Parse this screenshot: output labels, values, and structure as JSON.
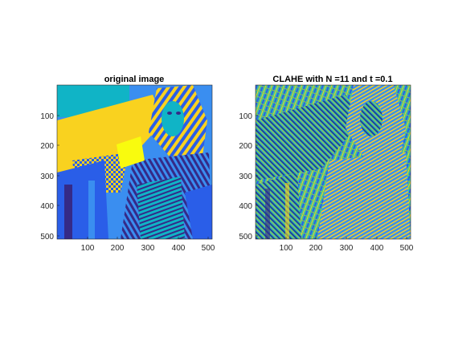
{
  "figure": {
    "colormap": "parula",
    "colors": {
      "background": "#ffffff",
      "axis": "#262626",
      "dark_blue": "#352a87",
      "blue": "#2a5ee8",
      "mid_blue": "#3a8ef0",
      "cyan": "#10b4c6",
      "teal": "#3dbf9f",
      "green": "#8cc94f",
      "yellow_green": "#c8c42a",
      "yellow": "#f9d21f",
      "light_yellow": "#f9fb0e"
    }
  },
  "panels": [
    {
      "id": "original",
      "title": "original image",
      "x_ticks": [
        "100",
        "200",
        "300",
        "400",
        "500"
      ],
      "y_ticks": [
        "100",
        "200",
        "300",
        "400",
        "500"
      ],
      "image": "barbara test image rendered with parula colormap",
      "x_range": [
        0,
        512
      ],
      "y_range": [
        0,
        512
      ]
    },
    {
      "id": "clahe",
      "title": "CLAHE with N =11 and t =0.1",
      "x_ticks": [
        "100",
        "200",
        "300",
        "400",
        "500"
      ],
      "y_ticks": [
        "100",
        "200",
        "300",
        "400",
        "500"
      ],
      "image": "contrast-limited adaptive histogram equalized result",
      "x_range": [
        0,
        512
      ],
      "y_range": [
        0,
        512
      ]
    }
  ]
}
